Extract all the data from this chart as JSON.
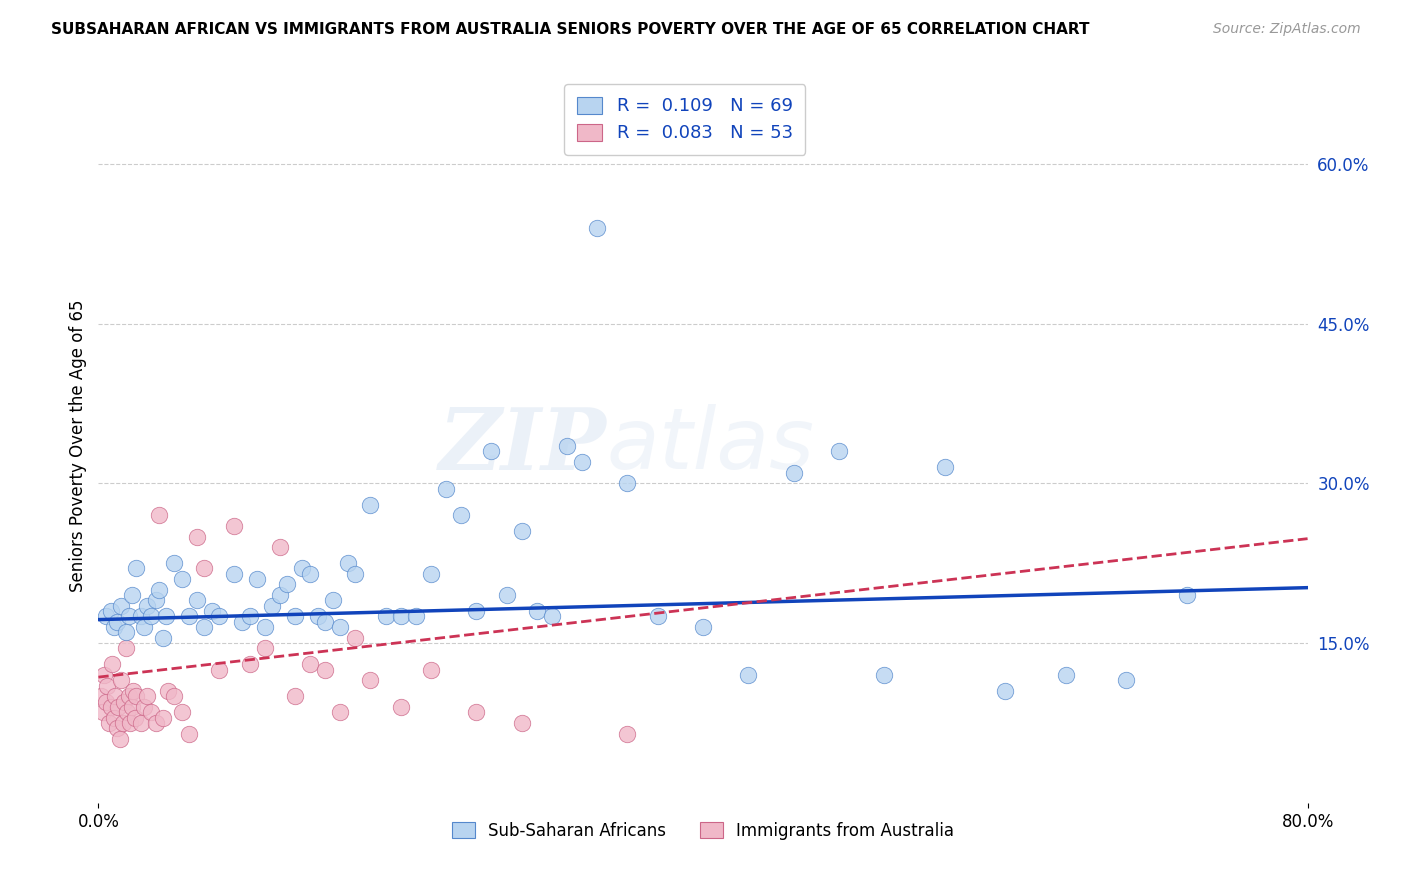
{
  "title": "SUBSAHARAN AFRICAN VS IMMIGRANTS FROM AUSTRALIA SENIORS POVERTY OVER THE AGE OF 65 CORRELATION CHART",
  "source": "Source: ZipAtlas.com",
  "ylabel": "Seniors Poverty Over the Age of 65",
  "ytick_values": [
    0.15,
    0.3,
    0.45,
    0.6
  ],
  "ytick_labels": [
    "15.0%",
    "30.0%",
    "45.0%",
    "60.0%"
  ],
  "xtick_values": [
    0.0,
    0.8
  ],
  "xtick_labels": [
    "0.0%",
    "80.0%"
  ],
  "xmin": 0.0,
  "xmax": 0.8,
  "ymin": 0.0,
  "ymax": 0.67,
  "blue_R": "0.109",
  "blue_N": "69",
  "pink_R": "0.083",
  "pink_N": "53",
  "legend_label_blue": "Sub-Saharan Africans",
  "legend_label_pink": "Immigrants from Australia",
  "blue_dot_color": "#b8d4f0",
  "pink_dot_color": "#f0b8c8",
  "blue_edge_color": "#5588cc",
  "pink_edge_color": "#cc6688",
  "blue_line_color": "#1144bb",
  "pink_line_color": "#cc3355",
  "watermark_text": "ZIPatlas",
  "blue_x": [
    0.005,
    0.008,
    0.01,
    0.012,
    0.015,
    0.018,
    0.02,
    0.022,
    0.025,
    0.028,
    0.03,
    0.032,
    0.035,
    0.038,
    0.04,
    0.043,
    0.045,
    0.05,
    0.055,
    0.06,
    0.065,
    0.07,
    0.075,
    0.08,
    0.09,
    0.095,
    0.1,
    0.105,
    0.11,
    0.115,
    0.12,
    0.125,
    0.13,
    0.135,
    0.14,
    0.145,
    0.15,
    0.155,
    0.16,
    0.165,
    0.17,
    0.18,
    0.19,
    0.2,
    0.21,
    0.22,
    0.23,
    0.24,
    0.25,
    0.26,
    0.27,
    0.28,
    0.29,
    0.3,
    0.31,
    0.32,
    0.33,
    0.35,
    0.37,
    0.4,
    0.43,
    0.46,
    0.49,
    0.52,
    0.56,
    0.6,
    0.64,
    0.68,
    0.72
  ],
  "blue_y": [
    0.175,
    0.18,
    0.165,
    0.17,
    0.185,
    0.16,
    0.175,
    0.195,
    0.22,
    0.175,
    0.165,
    0.185,
    0.175,
    0.19,
    0.2,
    0.155,
    0.175,
    0.225,
    0.21,
    0.175,
    0.19,
    0.165,
    0.18,
    0.175,
    0.215,
    0.17,
    0.175,
    0.21,
    0.165,
    0.185,
    0.195,
    0.205,
    0.175,
    0.22,
    0.215,
    0.175,
    0.17,
    0.19,
    0.165,
    0.225,
    0.215,
    0.28,
    0.175,
    0.175,
    0.175,
    0.215,
    0.295,
    0.27,
    0.18,
    0.33,
    0.195,
    0.255,
    0.18,
    0.175,
    0.335,
    0.32,
    0.54,
    0.3,
    0.175,
    0.165,
    0.12,
    0.31,
    0.33,
    0.12,
    0.315,
    0.105,
    0.12,
    0.115,
    0.195
  ],
  "pink_x": [
    0.002,
    0.003,
    0.004,
    0.005,
    0.006,
    0.007,
    0.008,
    0.009,
    0.01,
    0.011,
    0.012,
    0.013,
    0.014,
    0.015,
    0.016,
    0.017,
    0.018,
    0.019,
    0.02,
    0.021,
    0.022,
    0.023,
    0.024,
    0.025,
    0.028,
    0.03,
    0.032,
    0.035,
    0.038,
    0.04,
    0.043,
    0.046,
    0.05,
    0.055,
    0.06,
    0.065,
    0.07,
    0.08,
    0.09,
    0.1,
    0.11,
    0.12,
    0.13,
    0.14,
    0.15,
    0.16,
    0.17,
    0.18,
    0.2,
    0.22,
    0.25,
    0.28,
    0.35
  ],
  "pink_y": [
    0.1,
    0.085,
    0.12,
    0.095,
    0.11,
    0.075,
    0.09,
    0.13,
    0.08,
    0.1,
    0.07,
    0.09,
    0.06,
    0.115,
    0.075,
    0.095,
    0.145,
    0.085,
    0.1,
    0.075,
    0.09,
    0.105,
    0.08,
    0.1,
    0.075,
    0.09,
    0.1,
    0.085,
    0.075,
    0.27,
    0.08,
    0.105,
    0.1,
    0.085,
    0.065,
    0.25,
    0.22,
    0.125,
    0.26,
    0.13,
    0.145,
    0.24,
    0.1,
    0.13,
    0.125,
    0.085,
    0.155,
    0.115,
    0.09,
    0.125,
    0.085,
    0.075,
    0.065
  ],
  "blue_trend_x0": 0.0,
  "blue_trend_x1": 0.8,
  "blue_trend_y0": 0.172,
  "blue_trend_y1": 0.202,
  "pink_trend_x0": 0.0,
  "pink_trend_x1": 0.8,
  "pink_trend_y0": 0.118,
  "pink_trend_y1": 0.248
}
